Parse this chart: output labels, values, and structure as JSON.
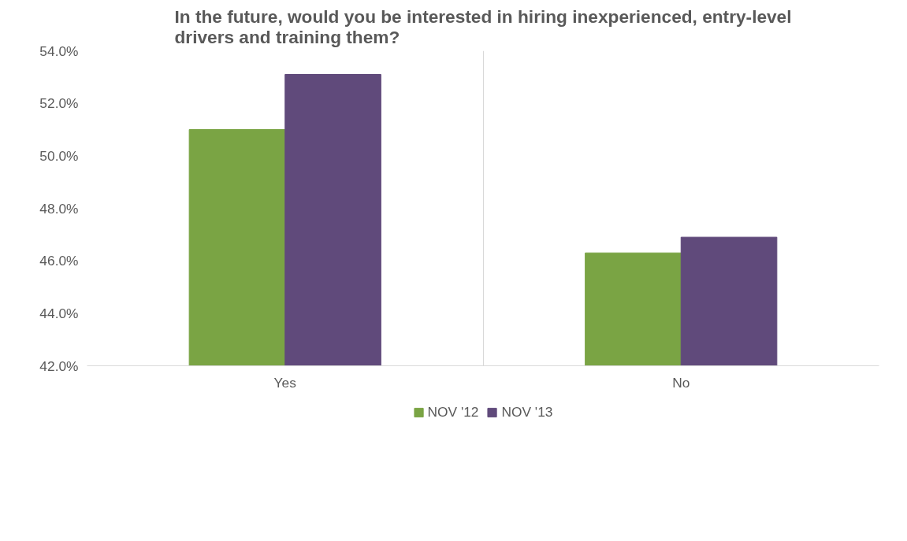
{
  "chart_data": {
    "type": "bar",
    "title": "In the future, would you be interested in hiring inexperienced, entry-level drivers and training them?",
    "categories": [
      "Yes",
      "No"
    ],
    "series": [
      {
        "name": "NOV '12",
        "color": "#7aa444",
        "values": [
          51.0,
          46.3
        ]
      },
      {
        "name": "NOV '13",
        "color": "#604a7b",
        "values": [
          53.1,
          46.9
        ]
      }
    ],
    "ylim": [
      42,
      54
    ],
    "yticks": [
      {
        "value": 42,
        "label": "42.0%"
      },
      {
        "value": 44,
        "label": "44.0%"
      },
      {
        "value": 46,
        "label": "46.0%"
      },
      {
        "value": 48,
        "label": "48.0%"
      },
      {
        "value": 50,
        "label": "50.0%"
      },
      {
        "value": 52,
        "label": "52.0%"
      },
      {
        "value": 54,
        "label": "54.0%"
      }
    ],
    "grid": "x",
    "legend": "bottom"
  }
}
